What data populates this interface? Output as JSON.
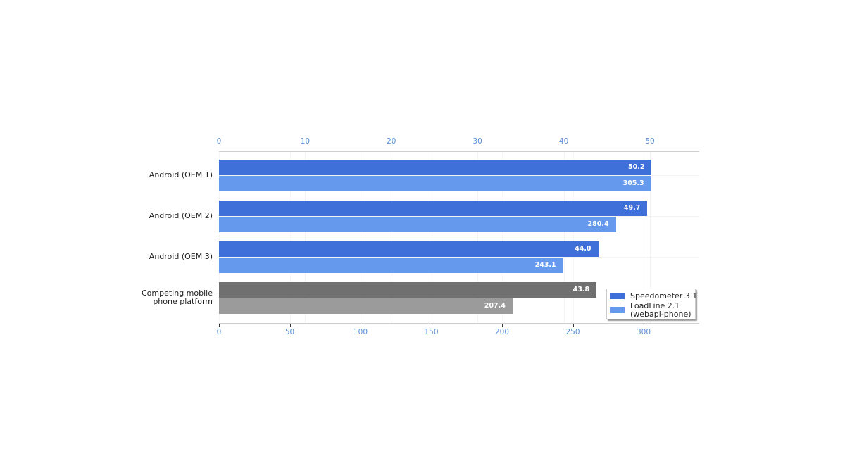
{
  "chart_data": {
    "type": "bar",
    "orientation": "horizontal",
    "title": "",
    "categories": [
      "Android (OEM 1)",
      "Android (OEM 2)",
      "Android (OEM 3)",
      "Competing mobile phone platform"
    ],
    "category_lines": [
      [
        "Android (OEM 1)"
      ],
      [
        "Android (OEM 2)"
      ],
      [
        "Android (OEM 3)"
      ],
      [
        "Competing mobile",
        "phone platform"
      ]
    ],
    "series": [
      {
        "name": "Speedometer 3.1",
        "axis": "top",
        "values": [
          50.2,
          49.7,
          44.0,
          43.8
        ],
        "labels": [
          "50.2",
          "49.7",
          "44.0",
          "43.8"
        ],
        "color": "#3f6fd8",
        "competitor_color": "#707070"
      },
      {
        "name": "LoadLine 2.1 (webapi-phone)",
        "axis": "bottom",
        "values": [
          305.3,
          280.4,
          243.1,
          207.4
        ],
        "labels": [
          "305.3",
          "280.4",
          "243.1",
          "207.4"
        ],
        "color": "#6499ee",
        "competitor_color": "#9b9b9b"
      }
    ],
    "top_axis": {
      "ticks": [
        0,
        10,
        20,
        30,
        40,
        50
      ],
      "tick_labels": [
        "0",
        "10",
        "20",
        "30",
        "40",
        "50"
      ],
      "range": [
        0,
        55.7
      ]
    },
    "bottom_axis": {
      "ticks": [
        0,
        50,
        100,
        150,
        200,
        250,
        300
      ],
      "tick_labels": [
        "0",
        "50",
        "100",
        "150",
        "200",
        "250",
        "300"
      ],
      "range": [
        0,
        339
      ]
    },
    "xlabel": "",
    "ylabel": "",
    "grid": true,
    "legend": {
      "position": "lower right",
      "entries": [
        {
          "lines": [
            "Speedometer 3.1"
          ],
          "color": "#3f6fd8"
        },
        {
          "lines": [
            "LoadLine 2.1",
            "(webapi-phone)"
          ],
          "color": "#6499ee"
        }
      ]
    }
  }
}
